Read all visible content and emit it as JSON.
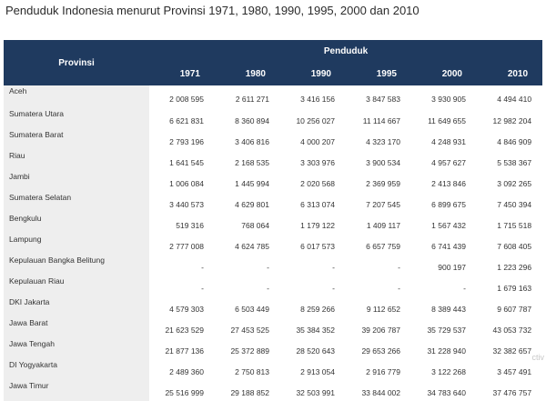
{
  "title": "Penduduk Indonesia menurut Provinsi 1971, 1980, 1990, 1995, 2000 dan 2010",
  "table": {
    "province_header": "Provinsi",
    "group_header": "Penduduk",
    "years": [
      "1971",
      "1980",
      "1990",
      "1995",
      "2000",
      "2010"
    ],
    "rows": [
      {
        "name": "Aceh",
        "values": [
          "2 008 595",
          "2 611 271",
          "3 416 156",
          "3 847 583",
          "3 930 905",
          "4 494 410"
        ]
      },
      {
        "name": "Sumatera Utara",
        "values": [
          "6 621 831",
          "8 360 894",
          "10 256 027",
          "11 114 667",
          "11 649 655",
          "12 982 204"
        ]
      },
      {
        "name": "Sumatera Barat",
        "values": [
          "2 793 196",
          "3 406 816",
          "4 000 207",
          "4 323 170",
          "4 248 931",
          "4 846 909"
        ]
      },
      {
        "name": "Riau",
        "values": [
          "1 641 545",
          "2 168 535",
          "3 303 976",
          "3 900 534",
          "4 957 627",
          "5 538 367"
        ]
      },
      {
        "name": "Jambi",
        "values": [
          "1 006 084",
          "1 445 994",
          "2 020 568",
          "2 369 959",
          "2 413 846",
          "3 092 265"
        ]
      },
      {
        "name": "Sumatera Selatan",
        "values": [
          "3 440 573",
          "4 629 801",
          "6 313 074",
          "7 207 545",
          "6 899 675",
          "7 450 394"
        ]
      },
      {
        "name": "Bengkulu",
        "values": [
          "519 316",
          "768 064",
          "1 179 122",
          "1 409 117",
          "1 567 432",
          "1 715 518"
        ]
      },
      {
        "name": "Lampung",
        "values": [
          "2 777 008",
          "4 624 785",
          "6 017 573",
          "6 657 759",
          "6 741 439",
          "7 608 405"
        ]
      },
      {
        "name": "Kepulauan Bangka Belitung",
        "values": [
          "-",
          "-",
          "-",
          "-",
          "900 197",
          "1 223 296"
        ]
      },
      {
        "name": "Kepulauan Riau",
        "values": [
          "-",
          "-",
          "-",
          "-",
          "-",
          "1 679 163"
        ]
      },
      {
        "name": "DKI Jakarta",
        "values": [
          "4 579 303",
          "6 503 449",
          "8 259 266",
          "9 112 652",
          "8 389 443",
          "9 607 787"
        ]
      },
      {
        "name": "Jawa Barat",
        "values": [
          "21 623 529",
          "27 453 525",
          "35 384 352",
          "39 206 787",
          "35 729 537",
          "43 053 732"
        ]
      },
      {
        "name": "Jawa Tengah",
        "values": [
          "21 877 136",
          "25 372 889",
          "28 520 643",
          "29 653 266",
          "31 228 940",
          "32 382 657"
        ]
      },
      {
        "name": "DI Yogyakarta",
        "values": [
          "2 489 360",
          "2 750 813",
          "2 913 054",
          "2 916 779",
          "3 122 268",
          "3 457 491"
        ]
      },
      {
        "name": "Jawa Timur",
        "values": [
          "25 516 999",
          "29 188 852",
          "32 503 991",
          "33 844 002",
          "34 783 640",
          "37 476 757"
        ]
      }
    ]
  }
}
